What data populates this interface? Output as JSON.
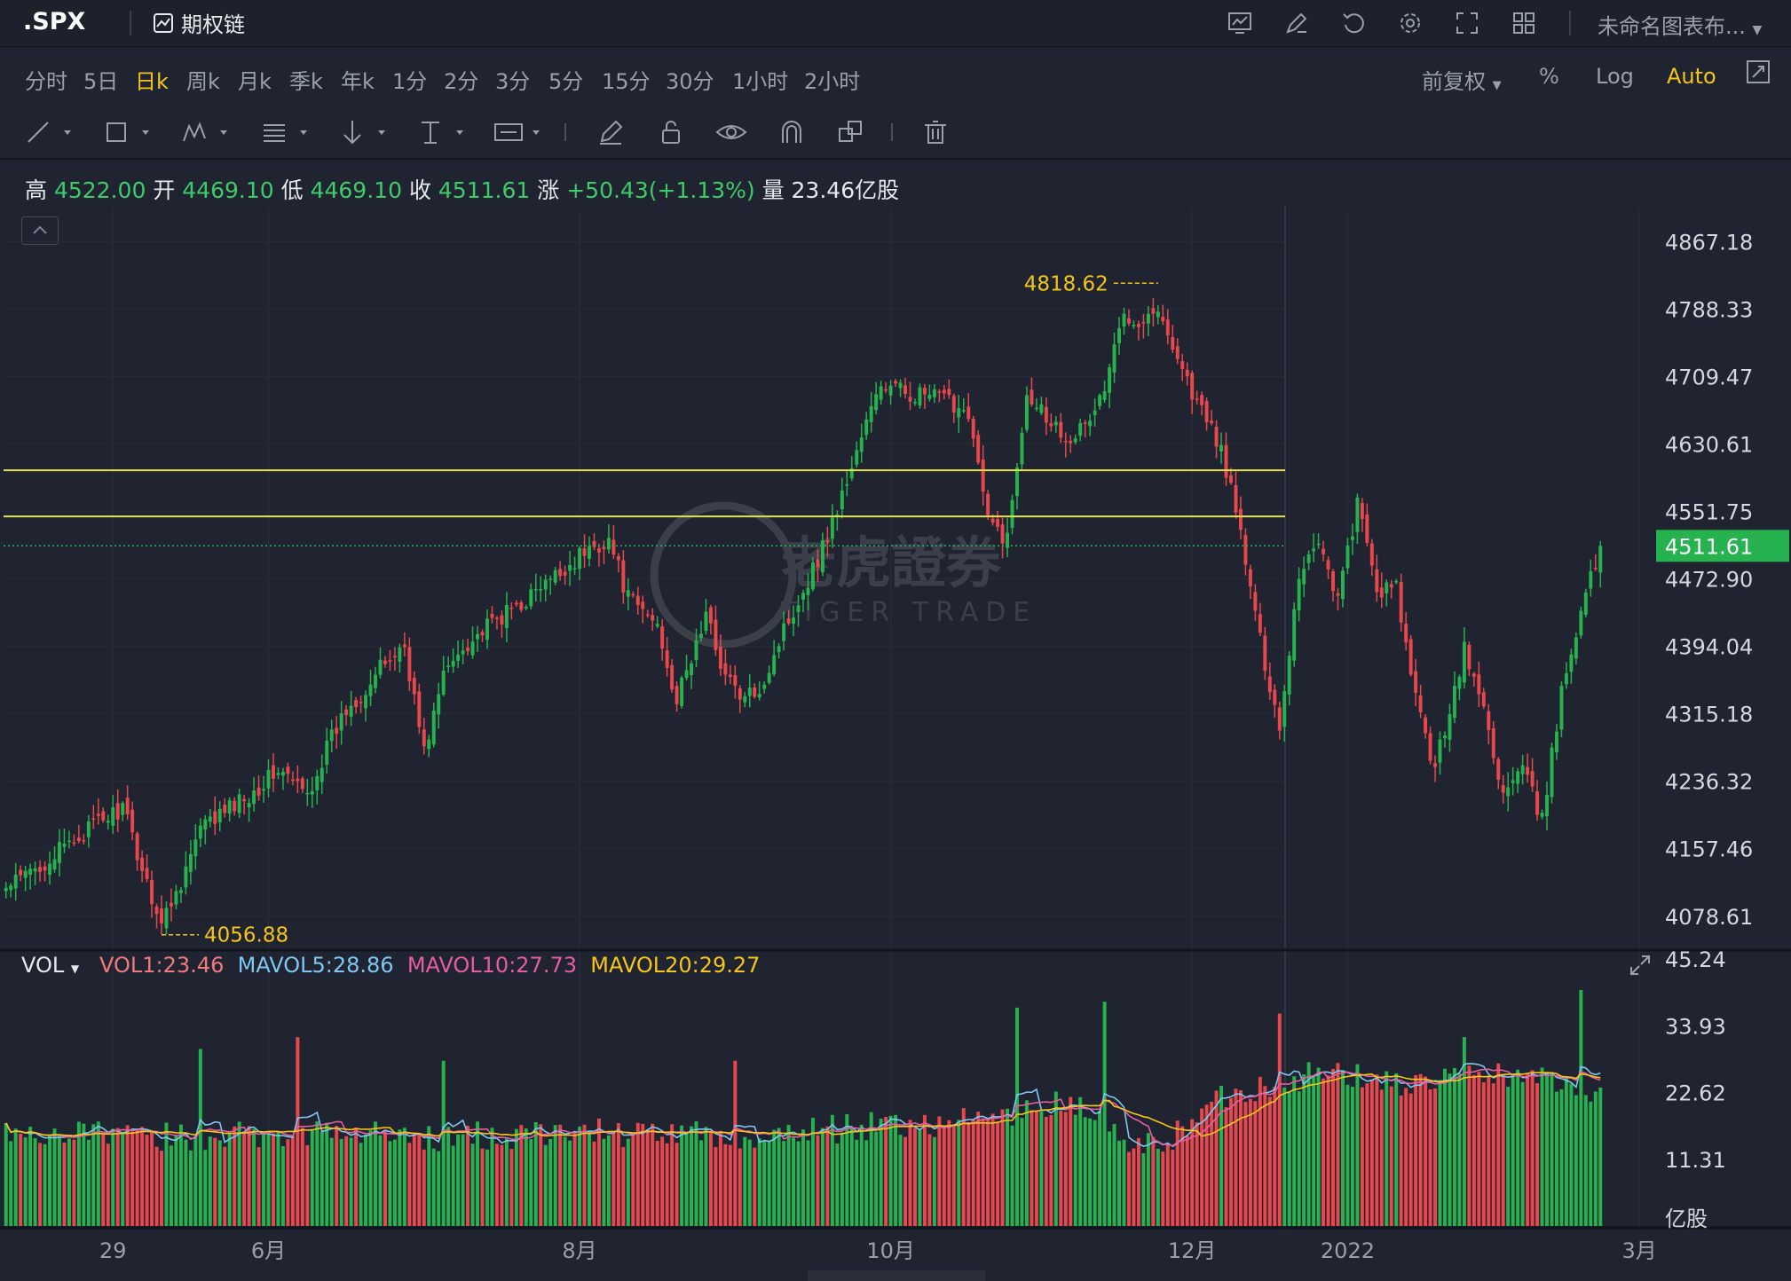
{
  "header": {
    "symbol": ".SPX",
    "option_chain_label": "期权链",
    "layout_name": "未命名图表布...",
    "icons": [
      "indicator-icon",
      "draw-icon",
      "undo-icon",
      "settings-icon",
      "fullscreen-icon",
      "layout-grid-icon"
    ]
  },
  "timeframes": [
    {
      "label": "分时",
      "active": false
    },
    {
      "label": "5日",
      "active": false
    },
    {
      "label": "日k",
      "active": true
    },
    {
      "label": "周k",
      "active": false
    },
    {
      "label": "月k",
      "active": false
    },
    {
      "label": "季k",
      "active": false
    },
    {
      "label": "年k",
      "active": false
    },
    {
      "label": "1分",
      "active": false
    },
    {
      "label": "2分",
      "active": false
    },
    {
      "label": "3分",
      "active": false
    },
    {
      "label": "5分",
      "active": false
    },
    {
      "label": "15分",
      "active": false
    },
    {
      "label": "30分",
      "active": false
    },
    {
      "label": "1小时",
      "active": false
    },
    {
      "label": "2小时",
      "active": false
    }
  ],
  "controls": {
    "adjust": "前复权",
    "percent": "%",
    "log": "Log",
    "auto": "Auto"
  },
  "quote": {
    "high_label": "高",
    "high": "4522.00",
    "open_label": "开",
    "open": "4469.10",
    "low_label": "低",
    "low": "4469.10",
    "close_label": "收",
    "close": "4511.61",
    "change_label": "涨",
    "change": "+50.43(+1.13%)",
    "volume_label": "量",
    "volume": "23.46亿股"
  },
  "volume_panel": {
    "selector": "VOL",
    "vol1": "VOL1:23.46",
    "mavol5": "MAVOL5:28.86",
    "mavol10": "MAVOL10:27.73",
    "mavol20": "MAVOL20:29.27",
    "unit": "亿股"
  },
  "watermark": {
    "cn": "老虎證券",
    "en": "TIGER TRADE"
  },
  "colors": {
    "up": "#26b24f",
    "down": "#e8474d",
    "accent": "#f5c518",
    "background": "#1f2430"
  },
  "chart_data": {
    "type": "candlestick",
    "price_ticks": [
      "4867.18",
      "4788.33",
      "4709.47",
      "4630.61",
      "4551.75",
      "4472.90",
      "4394.04",
      "4315.18",
      "4236.32",
      "4157.46",
      "4078.61"
    ],
    "price_ylim": [
      4040.0,
      4905.0
    ],
    "last_price_label": "4511.61",
    "last_price": 4511.61,
    "support_lines": [
      4600.0,
      4546.0
    ],
    "max_marker": {
      "label": "4818.62",
      "value": 4818.62
    },
    "min_marker": {
      "label": "4056.88",
      "value": 4056.88
    },
    "volume_ticks": [
      "45.24",
      "33.93",
      "22.62",
      "11.31"
    ],
    "volume_ylim": [
      0,
      46.6
    ],
    "x_labels": [
      "29",
      "6月",
      "8月",
      "10月",
      "12月",
      "2022",
      "3月"
    ],
    "waypoints": [
      [
        0,
        4110
      ],
      [
        10,
        4150
      ],
      [
        18,
        4185
      ],
      [
        24,
        4205
      ],
      [
        28,
        4135
      ],
      [
        32,
        4070
      ],
      [
        36,
        4120
      ],
      [
        40,
        4180
      ],
      [
        46,
        4205
      ],
      [
        52,
        4230
      ],
      [
        56,
        4250
      ],
      [
        62,
        4220
      ],
      [
        66,
        4275
      ],
      [
        70,
        4320
      ],
      [
        74,
        4345
      ],
      [
        78,
        4375
      ],
      [
        82,
        4395
      ],
      [
        86,
        4270
      ],
      [
        90,
        4360
      ],
      [
        94,
        4395
      ],
      [
        100,
        4420
      ],
      [
        106,
        4445
      ],
      [
        112,
        4470
      ],
      [
        118,
        4500
      ],
      [
        124,
        4520
      ],
      [
        128,
        4450
      ],
      [
        134,
        4420
      ],
      [
        138,
        4330
      ],
      [
        144,
        4430
      ],
      [
        148,
        4360
      ],
      [
        152,
        4330
      ],
      [
        156,
        4355
      ],
      [
        160,
        4415
      ],
      [
        164,
        4460
      ],
      [
        168,
        4510
      ],
      [
        172,
        4570
      ],
      [
        176,
        4640
      ],
      [
        180,
        4700
      ],
      [
        186,
        4690
      ],
      [
        192,
        4685
      ],
      [
        198,
        4670
      ],
      [
        202,
        4540
      ],
      [
        206,
        4520
      ],
      [
        210,
        4695
      ],
      [
        214,
        4665
      ],
      [
        218,
        4640
      ],
      [
        222,
        4650
      ],
      [
        226,
        4695
      ],
      [
        230,
        4785
      ],
      [
        234,
        4775
      ],
      [
        236,
        4790
      ],
      [
        240,
        4750
      ],
      [
        244,
        4690
      ],
      [
        250,
        4625
      ],
      [
        254,
        4525
      ],
      [
        258,
        4400
      ],
      [
        262,
        4300
      ],
      [
        266,
        4480
      ],
      [
        270,
        4520
      ],
      [
        274,
        4450
      ],
      [
        278,
        4560
      ],
      [
        282,
        4460
      ],
      [
        286,
        4460
      ],
      [
        290,
        4330
      ],
      [
        294,
        4250
      ],
      [
        296,
        4300
      ],
      [
        300,
        4390
      ],
      [
        304,
        4320
      ],
      [
        308,
        4220
      ],
      [
        312,
        4250
      ],
      [
        316,
        4190
      ],
      [
        320,
        4340
      ],
      [
        324,
        4440
      ],
      [
        328,
        4505
      ]
    ],
    "volume_waypoints": [
      [
        0,
        16
      ],
      [
        30,
        15
      ],
      [
        60,
        16
      ],
      [
        90,
        15
      ],
      [
        120,
        16
      ],
      [
        150,
        15
      ],
      [
        180,
        17
      ],
      [
        200,
        18
      ],
      [
        220,
        21
      ],
      [
        232,
        13
      ],
      [
        240,
        15
      ],
      [
        250,
        22
      ],
      [
        270,
        26
      ],
      [
        290,
        24
      ],
      [
        310,
        26
      ],
      [
        328,
        23
      ]
    ],
    "volume_spikes": [
      [
        40,
        30
      ],
      [
        60,
        32
      ],
      [
        90,
        28
      ],
      [
        150,
        28
      ],
      [
        208,
        37
      ],
      [
        226,
        38
      ],
      [
        262,
        36
      ],
      [
        300,
        32
      ],
      [
        324,
        40
      ]
    ],
    "last_volume": 23.46
  }
}
